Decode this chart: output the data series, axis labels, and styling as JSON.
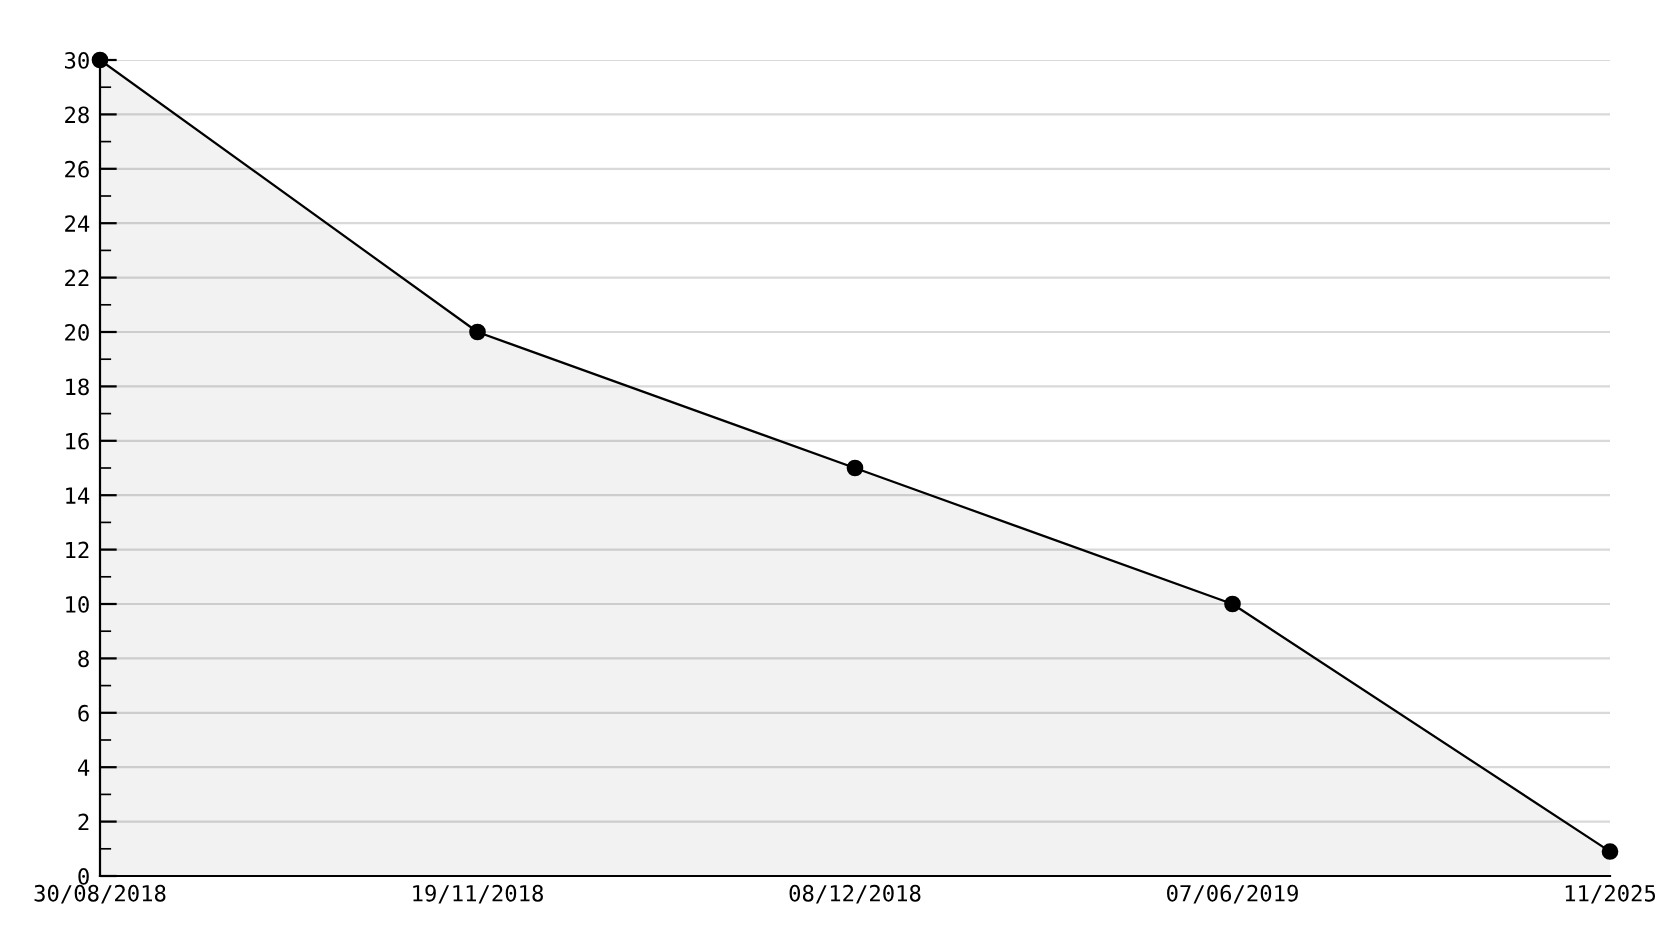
{
  "chart_data": {
    "type": "area",
    "categories": [
      "30/08/2018",
      "19/11/2018",
      "08/12/2018",
      "07/06/2019",
      "11/2025"
    ],
    "series": [
      {
        "color": "#000000",
        "values": [
          30,
          20,
          15,
          10,
          0.9
        ]
      }
    ],
    "ylim": [
      0,
      30
    ],
    "yticks": [
      0,
      {
        "value": 1,
        "label": null
      },
      2,
      {
        "value": 3,
        "label": null
      },
      4,
      {
        "value": 5,
        "label": null
      },
      6,
      {
        "value": 7,
        "label": null
      },
      8,
      {
        "value": 9,
        "label": null
      },
      10,
      {
        "value": 11,
        "label": null
      },
      12,
      {
        "value": 13,
        "label": null
      },
      14,
      {
        "value": 15,
        "label": null
      },
      16,
      {
        "value": 17,
        "label": null
      },
      18,
      {
        "value": 19,
        "label": null
      },
      20,
      {
        "value": 21,
        "label": null
      },
      22,
      {
        "value": 23,
        "label": null
      },
      24,
      {
        "value": 25,
        "label": null
      },
      26,
      {
        "value": 27,
        "label": null
      },
      28,
      {
        "value": 29,
        "label": null
      },
      30
    ],
    "grid": "y",
    "marker": "circle",
    "line_style": "solid"
  }
}
